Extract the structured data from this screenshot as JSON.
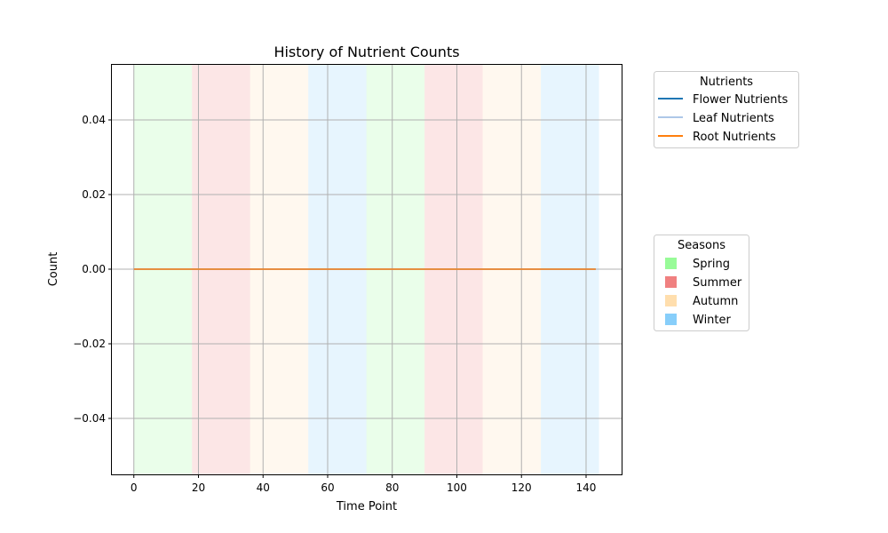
{
  "chart_data": {
    "type": "line",
    "title": "History of Nutrient Counts",
    "xlabel": "Time Point",
    "ylabel": "Count",
    "xlim": [
      -6.8,
      151.0
    ],
    "ylim": [
      -0.055,
      0.055
    ],
    "xticks": [
      0,
      20,
      40,
      60,
      80,
      100,
      120,
      140
    ],
    "yticks": [
      -0.04,
      -0.02,
      0.0,
      0.02,
      0.04
    ],
    "ytick_labels": [
      "−0.04",
      "−0.02",
      "0.00",
      "0.02",
      "0.04"
    ],
    "grid": true,
    "x": [
      0,
      143
    ],
    "series": [
      {
        "name": "Flower Nutrients",
        "color": "#1f77b4",
        "values": [
          0,
          0
        ]
      },
      {
        "name": "Leaf Nutrients",
        "color": "#aec7e8",
        "values": [
          0,
          0
        ]
      },
      {
        "name": "Root Nutrients",
        "color": "#ff7f0e",
        "values": [
          0,
          0
        ]
      }
    ],
    "nutrients_legend": {
      "title": "Nutrients",
      "placement": "outside upper right"
    },
    "seasons_legend": {
      "title": "Seasons",
      "placement": "outside center right",
      "items": [
        {
          "name": "Spring",
          "color": "#98fb98"
        },
        {
          "name": "Summer",
          "color": "#f08080"
        },
        {
          "name": "Autumn",
          "color": "#ffdead"
        },
        {
          "name": "Winter",
          "color": "#87cefa"
        }
      ]
    },
    "season_bands": [
      {
        "season": "Spring",
        "start": 0,
        "end": 18
      },
      {
        "season": "Summer",
        "start": 18,
        "end": 36
      },
      {
        "season": "Autumn",
        "start": 36,
        "end": 54
      },
      {
        "season": "Winter",
        "start": 54,
        "end": 72
      },
      {
        "season": "Spring",
        "start": 72,
        "end": 90
      },
      {
        "season": "Summer",
        "start": 90,
        "end": 108
      },
      {
        "season": "Autumn",
        "start": 108,
        "end": 126
      },
      {
        "season": "Winter",
        "start": 126,
        "end": 144
      }
    ]
  }
}
